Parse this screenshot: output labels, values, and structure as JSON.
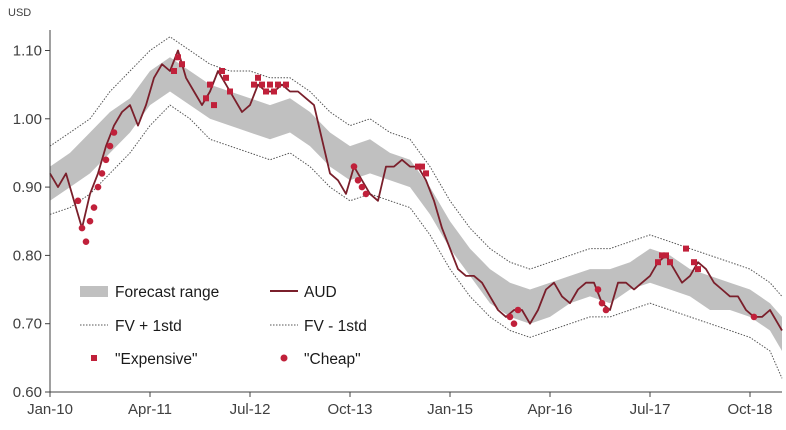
{
  "chart_data": {
    "type": "line",
    "unit_label": "USD",
    "ylim": [
      0.6,
      1.13
    ],
    "y_ticks": [
      {
        "value": 0.6,
        "label": "0.60"
      },
      {
        "value": 0.7,
        "label": "0.70"
      },
      {
        "value": 0.8,
        "label": "0.80"
      },
      {
        "value": 0.9,
        "label": "0.90"
      },
      {
        "value": 1.0,
        "label": "1.00"
      },
      {
        "value": 1.1,
        "label": "1.10"
      }
    ],
    "x_range": [
      2010.0,
      2019.15
    ],
    "x_ticks": [
      {
        "value": 2010.0,
        "label": "Jan-10"
      },
      {
        "value": 2011.25,
        "label": "Apr-11"
      },
      {
        "value": 2012.5,
        "label": "Jul-12"
      },
      {
        "value": 2013.75,
        "label": "Oct-13"
      },
      {
        "value": 2015.0,
        "label": "Jan-15"
      },
      {
        "value": 2016.25,
        "label": "Apr-16"
      },
      {
        "value": 2017.5,
        "label": "Jul-17"
      },
      {
        "value": 2018.75,
        "label": "Oct-18"
      }
    ],
    "legend": {
      "forecast_range": "Forecast range",
      "aud": "AUD",
      "fv_plus": "FV + 1std",
      "fv_minus": "FV - 1std",
      "expensive": "\"Expensive\"",
      "cheap": "\"Cheap\""
    },
    "colors": {
      "aud": "#7a1f2b",
      "band": "#c0c0c0",
      "std_lines": "#555555",
      "markers": "#c0203a",
      "axis": "#404040"
    },
    "series": {
      "aud": {
        "name": "AUD",
        "points": [
          [
            2010.0,
            0.92
          ],
          [
            2010.1,
            0.9
          ],
          [
            2010.2,
            0.92
          ],
          [
            2010.3,
            0.88
          ],
          [
            2010.4,
            0.84
          ],
          [
            2010.5,
            0.89
          ],
          [
            2010.6,
            0.92
          ],
          [
            2010.7,
            0.96
          ],
          [
            2010.8,
            0.99
          ],
          [
            2010.9,
            1.01
          ],
          [
            2011.0,
            1.02
          ],
          [
            2011.1,
            0.99
          ],
          [
            2011.2,
            1.02
          ],
          [
            2011.3,
            1.06
          ],
          [
            2011.4,
            1.08
          ],
          [
            2011.5,
            1.07
          ],
          [
            2011.6,
            1.1
          ],
          [
            2011.7,
            1.06
          ],
          [
            2011.8,
            1.04
          ],
          [
            2011.9,
            1.02
          ],
          [
            2012.0,
            1.04
          ],
          [
            2012.1,
            1.07
          ],
          [
            2012.2,
            1.05
          ],
          [
            2012.3,
            1.03
          ],
          [
            2012.4,
            1.01
          ],
          [
            2012.5,
            1.02
          ],
          [
            2012.6,
            1.05
          ],
          [
            2012.7,
            1.04
          ],
          [
            2012.8,
            1.04
          ],
          [
            2012.9,
            1.05
          ],
          [
            2013.0,
            1.04
          ],
          [
            2013.1,
            1.04
          ],
          [
            2013.2,
            1.03
          ],
          [
            2013.3,
            1.02
          ],
          [
            2013.4,
            0.97
          ],
          [
            2013.5,
            0.92
          ],
          [
            2013.6,
            0.91
          ],
          [
            2013.7,
            0.89
          ],
          [
            2013.8,
            0.93
          ],
          [
            2013.9,
            0.91
          ],
          [
            2014.0,
            0.89
          ],
          [
            2014.1,
            0.88
          ],
          [
            2014.2,
            0.93
          ],
          [
            2014.3,
            0.93
          ],
          [
            2014.4,
            0.94
          ],
          [
            2014.5,
            0.93
          ],
          [
            2014.6,
            0.93
          ],
          [
            2014.7,
            0.91
          ],
          [
            2014.8,
            0.88
          ],
          [
            2014.9,
            0.84
          ],
          [
            2015.0,
            0.81
          ],
          [
            2015.1,
            0.78
          ],
          [
            2015.2,
            0.77
          ],
          [
            2015.3,
            0.77
          ],
          [
            2015.4,
            0.76
          ],
          [
            2015.5,
            0.74
          ],
          [
            2015.6,
            0.72
          ],
          [
            2015.7,
            0.71
          ],
          [
            2015.8,
            0.72
          ],
          [
            2015.9,
            0.72
          ],
          [
            2016.0,
            0.7
          ],
          [
            2016.1,
            0.72
          ],
          [
            2016.2,
            0.75
          ],
          [
            2016.3,
            0.76
          ],
          [
            2016.4,
            0.74
          ],
          [
            2016.5,
            0.73
          ],
          [
            2016.6,
            0.75
          ],
          [
            2016.7,
            0.76
          ],
          [
            2016.8,
            0.76
          ],
          [
            2016.9,
            0.73
          ],
          [
            2017.0,
            0.72
          ],
          [
            2017.1,
            0.76
          ],
          [
            2017.2,
            0.76
          ],
          [
            2017.3,
            0.75
          ],
          [
            2017.4,
            0.76
          ],
          [
            2017.5,
            0.77
          ],
          [
            2017.6,
            0.79
          ],
          [
            2017.7,
            0.8
          ],
          [
            2017.8,
            0.78
          ],
          [
            2017.9,
            0.76
          ],
          [
            2018.0,
            0.77
          ],
          [
            2018.1,
            0.79
          ],
          [
            2018.2,
            0.78
          ],
          [
            2018.3,
            0.76
          ],
          [
            2018.4,
            0.75
          ],
          [
            2018.5,
            0.74
          ],
          [
            2018.6,
            0.74
          ],
          [
            2018.7,
            0.72
          ],
          [
            2018.8,
            0.71
          ],
          [
            2018.9,
            0.71
          ],
          [
            2019.0,
            0.72
          ],
          [
            2019.1,
            0.7
          ],
          [
            2019.15,
            0.69
          ]
        ]
      },
      "forecast_range": {
        "name": "Forecast range",
        "points": [
          [
            2010.0,
            0.88,
            0.93
          ],
          [
            2010.25,
            0.9,
            0.95
          ],
          [
            2010.5,
            0.92,
            0.98
          ],
          [
            2010.75,
            0.95,
            1.01
          ],
          [
            2011.0,
            0.98,
            1.03
          ],
          [
            2011.25,
            1.02,
            1.07
          ],
          [
            2011.5,
            1.04,
            1.09
          ],
          [
            2011.75,
            1.02,
            1.07
          ],
          [
            2012.0,
            1.0,
            1.05
          ],
          [
            2012.25,
            0.99,
            1.04
          ],
          [
            2012.5,
            0.98,
            1.03
          ],
          [
            2012.75,
            0.97,
            1.02
          ],
          [
            2013.0,
            0.98,
            1.03
          ],
          [
            2013.25,
            0.96,
            1.01
          ],
          [
            2013.5,
            0.93,
            0.98
          ],
          [
            2013.75,
            0.91,
            0.96
          ],
          [
            2014.0,
            0.92,
            0.97
          ],
          [
            2014.25,
            0.91,
            0.95
          ],
          [
            2014.5,
            0.9,
            0.94
          ],
          [
            2014.75,
            0.86,
            0.9
          ],
          [
            2015.0,
            0.81,
            0.85
          ],
          [
            2015.25,
            0.77,
            0.81
          ],
          [
            2015.5,
            0.73,
            0.78
          ],
          [
            2015.75,
            0.71,
            0.76
          ],
          [
            2016.0,
            0.7,
            0.75
          ],
          [
            2016.25,
            0.71,
            0.76
          ],
          [
            2016.5,
            0.73,
            0.77
          ],
          [
            2016.75,
            0.74,
            0.78
          ],
          [
            2017.0,
            0.73,
            0.78
          ],
          [
            2017.25,
            0.75,
            0.79
          ],
          [
            2017.5,
            0.76,
            0.81
          ],
          [
            2017.75,
            0.75,
            0.8
          ],
          [
            2018.0,
            0.74,
            0.78
          ],
          [
            2018.25,
            0.72,
            0.77
          ],
          [
            2018.5,
            0.72,
            0.76
          ],
          [
            2018.75,
            0.71,
            0.75
          ],
          [
            2019.0,
            0.69,
            0.73
          ],
          [
            2019.15,
            0.66,
            0.71
          ]
        ]
      },
      "fv_plus_1std": {
        "name": "FV + 1std",
        "points": [
          [
            2010.0,
            0.96
          ],
          [
            2010.25,
            0.98
          ],
          [
            2010.5,
            1.0
          ],
          [
            2010.75,
            1.04
          ],
          [
            2011.0,
            1.07
          ],
          [
            2011.25,
            1.1
          ],
          [
            2011.5,
            1.12
          ],
          [
            2011.75,
            1.1
          ],
          [
            2012.0,
            1.08
          ],
          [
            2012.25,
            1.07
          ],
          [
            2012.5,
            1.07
          ],
          [
            2012.75,
            1.06
          ],
          [
            2013.0,
            1.06
          ],
          [
            2013.25,
            1.04
          ],
          [
            2013.5,
            1.01
          ],
          [
            2013.75,
            0.99
          ],
          [
            2014.0,
            1.0
          ],
          [
            2014.25,
            0.98
          ],
          [
            2014.5,
            0.97
          ],
          [
            2014.75,
            0.93
          ],
          [
            2015.0,
            0.88
          ],
          [
            2015.25,
            0.84
          ],
          [
            2015.5,
            0.81
          ],
          [
            2015.75,
            0.79
          ],
          [
            2016.0,
            0.78
          ],
          [
            2016.25,
            0.79
          ],
          [
            2016.5,
            0.8
          ],
          [
            2016.75,
            0.81
          ],
          [
            2017.0,
            0.81
          ],
          [
            2017.25,
            0.82
          ],
          [
            2017.5,
            0.83
          ],
          [
            2017.75,
            0.82
          ],
          [
            2018.0,
            0.81
          ],
          [
            2018.25,
            0.8
          ],
          [
            2018.5,
            0.79
          ],
          [
            2018.75,
            0.78
          ],
          [
            2019.0,
            0.76
          ],
          [
            2019.15,
            0.74
          ]
        ]
      },
      "fv_minus_1std": {
        "name": "FV - 1std",
        "points": [
          [
            2010.0,
            0.86
          ],
          [
            2010.25,
            0.87
          ],
          [
            2010.5,
            0.89
          ],
          [
            2010.75,
            0.92
          ],
          [
            2011.0,
            0.95
          ],
          [
            2011.25,
            0.99
          ],
          [
            2011.5,
            1.02
          ],
          [
            2011.75,
            1.0
          ],
          [
            2012.0,
            0.97
          ],
          [
            2012.25,
            0.96
          ],
          [
            2012.5,
            0.95
          ],
          [
            2012.75,
            0.94
          ],
          [
            2013.0,
            0.95
          ],
          [
            2013.25,
            0.93
          ],
          [
            2013.5,
            0.9
          ],
          [
            2013.75,
            0.88
          ],
          [
            2014.0,
            0.89
          ],
          [
            2014.25,
            0.88
          ],
          [
            2014.5,
            0.87
          ],
          [
            2014.75,
            0.83
          ],
          [
            2015.0,
            0.78
          ],
          [
            2015.25,
            0.74
          ],
          [
            2015.5,
            0.71
          ],
          [
            2015.75,
            0.69
          ],
          [
            2016.0,
            0.68
          ],
          [
            2016.25,
            0.69
          ],
          [
            2016.5,
            0.7
          ],
          [
            2016.75,
            0.71
          ],
          [
            2017.0,
            0.71
          ],
          [
            2017.25,
            0.72
          ],
          [
            2017.5,
            0.73
          ],
          [
            2017.75,
            0.72
          ],
          [
            2018.0,
            0.71
          ],
          [
            2018.25,
            0.7
          ],
          [
            2018.5,
            0.69
          ],
          [
            2018.75,
            0.68
          ],
          [
            2019.0,
            0.66
          ],
          [
            2019.15,
            0.62
          ]
        ]
      },
      "expensive": {
        "name": "\"Expensive\"",
        "points": [
          [
            2011.55,
            1.07
          ],
          [
            2011.6,
            1.09
          ],
          [
            2011.65,
            1.08
          ],
          [
            2011.95,
            1.03
          ],
          [
            2012.0,
            1.05
          ],
          [
            2012.05,
            1.02
          ],
          [
            2012.15,
            1.07
          ],
          [
            2012.2,
            1.06
          ],
          [
            2012.25,
            1.04
          ],
          [
            2012.55,
            1.05
          ],
          [
            2012.6,
            1.06
          ],
          [
            2012.65,
            1.05
          ],
          [
            2012.7,
            1.04
          ],
          [
            2012.75,
            1.05
          ],
          [
            2012.8,
            1.04
          ],
          [
            2012.85,
            1.05
          ],
          [
            2012.95,
            1.05
          ],
          [
            2014.6,
            0.93
          ],
          [
            2014.65,
            0.93
          ],
          [
            2014.7,
            0.92
          ],
          [
            2017.6,
            0.79
          ],
          [
            2017.65,
            0.8
          ],
          [
            2017.7,
            0.8
          ],
          [
            2017.75,
            0.79
          ],
          [
            2017.95,
            0.81
          ],
          [
            2018.05,
            0.79
          ],
          [
            2018.1,
            0.78
          ]
        ]
      },
      "cheap": {
        "name": "\"Cheap\"",
        "points": [
          [
            2010.35,
            0.88
          ],
          [
            2010.4,
            0.84
          ],
          [
            2010.45,
            0.82
          ],
          [
            2010.5,
            0.85
          ],
          [
            2010.55,
            0.87
          ],
          [
            2010.6,
            0.9
          ],
          [
            2010.65,
            0.92
          ],
          [
            2010.7,
            0.94
          ],
          [
            2010.75,
            0.96
          ],
          [
            2010.8,
            0.98
          ],
          [
            2013.8,
            0.93
          ],
          [
            2013.85,
            0.91
          ],
          [
            2013.9,
            0.9
          ],
          [
            2013.95,
            0.89
          ],
          [
            2015.75,
            0.71
          ],
          [
            2015.8,
            0.7
          ],
          [
            2015.85,
            0.72
          ],
          [
            2016.85,
            0.75
          ],
          [
            2016.9,
            0.73
          ],
          [
            2016.95,
            0.72
          ],
          [
            2018.8,
            0.71
          ]
        ]
      }
    }
  }
}
